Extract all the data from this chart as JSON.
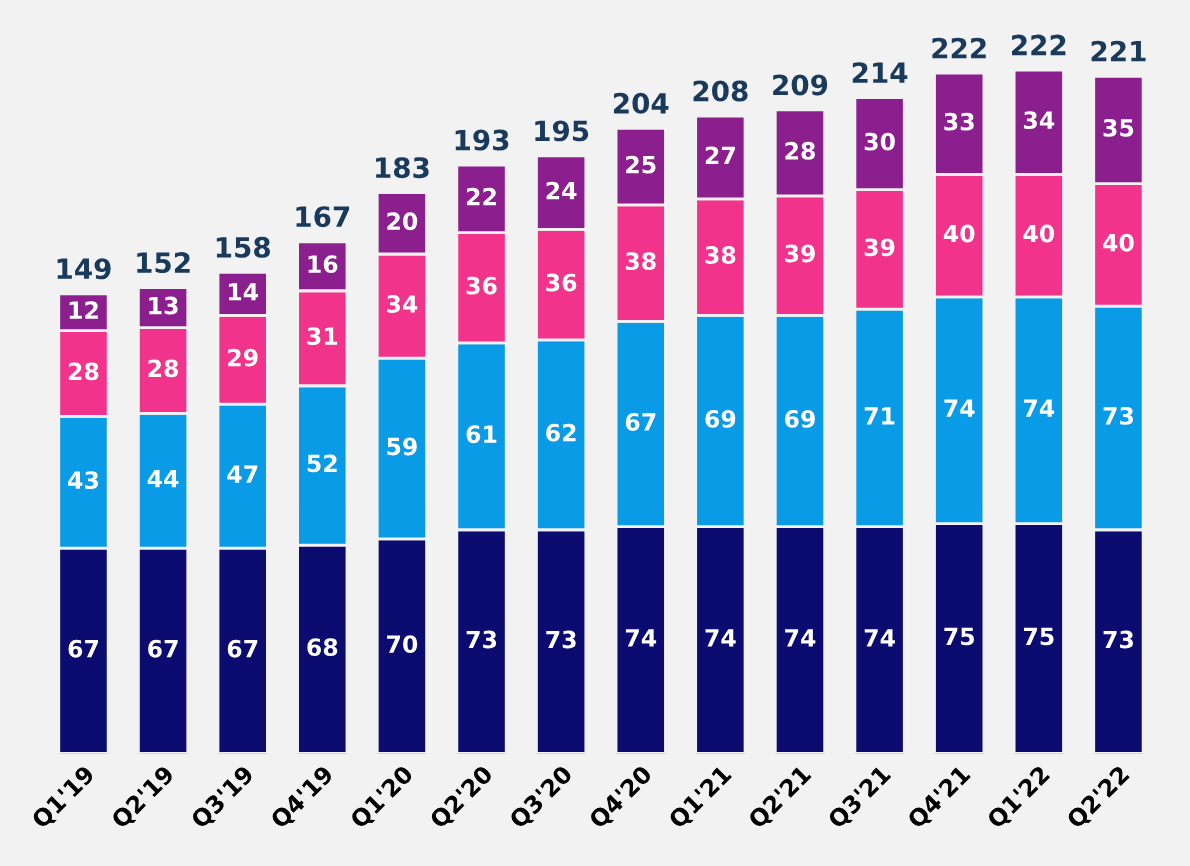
{
  "chart_data": {
    "type": "bar",
    "stacked": true,
    "data_labels": true,
    "tick_labels": "x",
    "categories": [
      "Q1'19",
      "Q2'19",
      "Q3'19",
      "Q4'19",
      "Q1'20",
      "Q2'20",
      "Q3'20",
      "Q4'20",
      "Q1'21",
      "Q2'21",
      "Q3'21",
      "Q4'21",
      "Q1'22",
      "Q2'22"
    ],
    "series": [
      {
        "color": "#0b0b70",
        "values": [
          67,
          67,
          67,
          68,
          70,
          73,
          73,
          74,
          74,
          74,
          74,
          75,
          75,
          73
        ]
      },
      {
        "color": "#0a9be6",
        "values": [
          43,
          44,
          47,
          52,
          59,
          61,
          62,
          67,
          69,
          69,
          71,
          74,
          74,
          73
        ]
      },
      {
        "color": "#f2338c",
        "values": [
          28,
          28,
          29,
          31,
          34,
          36,
          36,
          38,
          38,
          39,
          39,
          40,
          40,
          40
        ]
      },
      {
        "color": "#8c1f8e",
        "values": [
          12,
          13,
          14,
          16,
          20,
          22,
          24,
          25,
          27,
          28,
          30,
          33,
          34,
          35
        ]
      }
    ],
    "totals": [
      "149",
      "152",
      "158",
      "167",
      "183",
      "193",
      "195",
      "204",
      "208",
      "209",
      "214",
      "222",
      "222",
      "221"
    ]
  }
}
